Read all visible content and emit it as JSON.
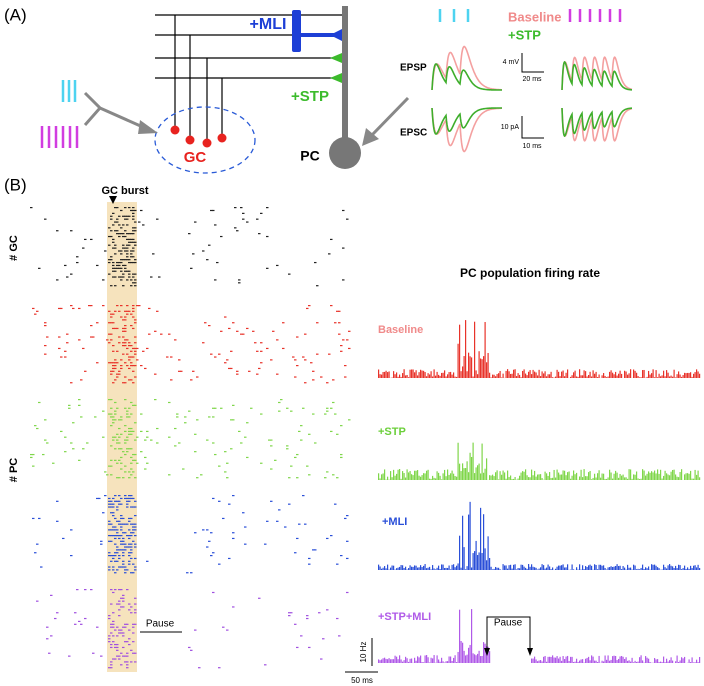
{
  "panel_a": {
    "label": "(A)",
    "mli": "+MLI",
    "stp": "+STP",
    "gc": "GC",
    "pc": "PC",
    "epsp": "EPSP",
    "epsc": "EPSC",
    "epsp_scale_y": "4 mV",
    "epsp_scale_x": "20 ms",
    "epsc_scale_y": "10 pA",
    "epsc_scale_x": "10 ms",
    "legend": [
      "Baseline",
      "+STP"
    ]
  },
  "panel_b": {
    "label": "(B)",
    "gc_burst": "GC burst",
    "gc_axis": "# GC",
    "pc_axis": "# PC",
    "pause": "Pause",
    "rate_title": "PC population firing rate",
    "conditions": [
      "Baseline",
      "+STP",
      "+MLI",
      "+STP+MLI"
    ],
    "rate_pause": "Pause",
    "scale_y": "10 Hz",
    "scale_x": "50 ms"
  }
}
